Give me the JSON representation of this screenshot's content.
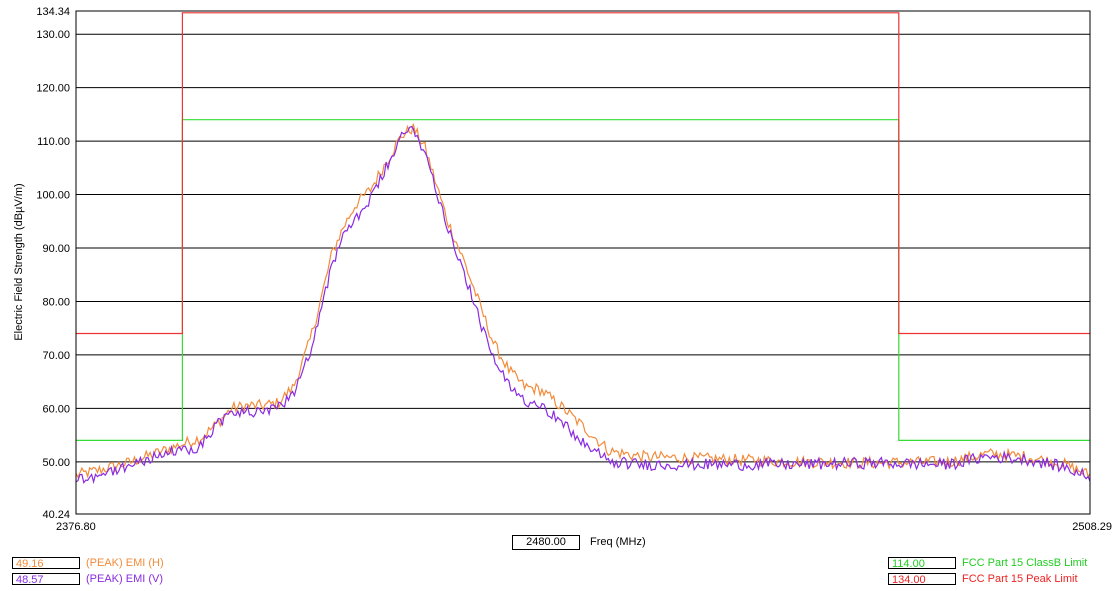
{
  "chart_data": {
    "type": "line",
    "ylabel": "Electric Field Strength (dBµV/m)",
    "xlim": [
      2376.8,
      2508.29
    ],
    "ylim": [
      40.24,
      134.34
    ],
    "x_ticks": [
      "2376.80",
      "2508.29"
    ],
    "y_ticks": [
      "40.24",
      "50.00",
      "60.00",
      "70.00",
      "80.00",
      "90.00",
      "100.00",
      "110.00",
      "120.00",
      "130.00",
      "134.34"
    ],
    "grid": true,
    "series": [
      {
        "name": "(PEAK) EMI (H)",
        "color": "#f28c3c",
        "x": [
          2376.8,
          2380,
          2384,
          2387,
          2390,
          2393,
          2395,
          2397,
          2399,
          2401,
          2403,
          2405,
          2407,
          2408.5,
          2410,
          2411.5,
          2413,
          2415,
          2417,
          2419,
          2420.5,
          2422,
          2423.5,
          2425,
          2427,
          2429,
          2431,
          2433,
          2435,
          2437,
          2440,
          2443,
          2446,
          2450,
          2460,
          2470,
          2480,
          2490,
          2495,
          2500,
          2505,
          2508.29
        ],
        "y": [
          47.5,
          48.5,
          50,
          51.5,
          53,
          54.5,
          57,
          60,
          60.5,
          60.5,
          61,
          64,
          72,
          80,
          89,
          94,
          98,
          101,
          106,
          111,
          112.5,
          109,
          102,
          95,
          88,
          80,
          72,
          67,
          64,
          63.5,
          60,
          56,
          52,
          51,
          50.5,
          50,
          49.8,
          50,
          51.5,
          51,
          49.5,
          47.5
        ]
      },
      {
        "name": "(PEAK) EMI (V)",
        "color": "#8a2be2",
        "x": [
          2376.8,
          2380,
          2384,
          2387,
          2390,
          2393,
          2395,
          2397,
          2399,
          2401,
          2403,
          2405,
          2407,
          2408.5,
          2410,
          2411.5,
          2413,
          2415,
          2417,
          2419,
          2420.5,
          2422,
          2423.5,
          2425,
          2427,
          2429,
          2431,
          2433,
          2435,
          2437,
          2440,
          2443,
          2446,
          2450,
          2460,
          2470,
          2480,
          2490,
          2495,
          2500,
          2505,
          2508.29
        ],
        "y": [
          46.8,
          47.5,
          49.5,
          51,
          52,
          53,
          57,
          59,
          59.5,
          59,
          60,
          63,
          70,
          78,
          87,
          92,
          95.5,
          99,
          105,
          110.5,
          112.8,
          108,
          101,
          94,
          86,
          77,
          69,
          64,
          61.5,
          61,
          57,
          53,
          50,
          49.5,
          49.5,
          49.5,
          49.8,
          49.5,
          51,
          50.5,
          49,
          47
        ]
      },
      {
        "name": "FCC Part 15 ClassB Limit",
        "color": "#33dd33",
        "x": [
          2376.8,
          2390.6,
          2390.6,
          2483.5,
          2483.5,
          2508.29
        ],
        "y": [
          54,
          54,
          114,
          114,
          54,
          54
        ]
      },
      {
        "name": "FCC Part 15 Peak Limit",
        "color": "#ee3333",
        "x": [
          2376.8,
          2390.6,
          2390.6,
          2483.5,
          2483.5,
          2508.29
        ],
        "y": [
          74,
          74,
          134,
          134,
          74,
          74
        ]
      }
    ]
  },
  "marker": {
    "freq_value": "2480.00",
    "freq_label": "Freq (MHz)"
  },
  "legend_left": [
    {
      "value": "49.16",
      "label": "(PEAK) EMI (H)",
      "color": "#f28c3c"
    },
    {
      "value": "48.57",
      "label": "(PEAK) EMI (V)",
      "color": "#8a2be2"
    }
  ],
  "legend_right": [
    {
      "value": "114.00",
      "label": "FCC Part 15 ClassB Limit",
      "color": "#22cc22"
    },
    {
      "value": "134.00",
      "label": "FCC Part 15 Peak Limit",
      "color": "#ee2222"
    }
  ]
}
